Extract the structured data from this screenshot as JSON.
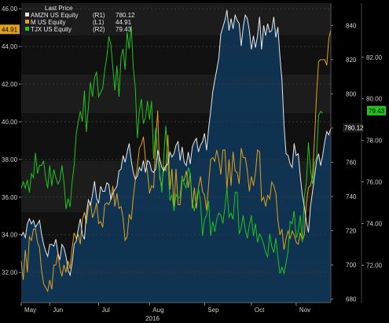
{
  "chart_data": {
    "type": "line",
    "legend": {
      "title": "Last Price",
      "placement": "top-left",
      "items": [
        {
          "key": "amzn",
          "name": "AMZN US Equity",
          "axis_label": "(R1)",
          "value": "780.12"
        },
        {
          "key": "m",
          "name": "M US Equity",
          "axis_label": "(L1)",
          "value": "44.91"
        },
        {
          "key": "tjx",
          "name": "TJX US Equity",
          "axis_label": "(R2)",
          "value": "79.43"
        }
      ]
    },
    "x_axis": {
      "months": [
        "May",
        "Jun",
        "Jul",
        "Aug",
        "Sep",
        "Oct",
        "Nov"
      ],
      "year": "2016"
    },
    "axes": {
      "L1": {
        "ticks": [
          "32.00",
          "34.00",
          "36.00",
          "38.00",
          "40.00",
          "42.00",
          "44.00",
          "46.00"
        ],
        "range": [
          30.4,
          46.3
        ]
      },
      "R1": {
        "ticks": [
          "680",
          "700",
          "720",
          "740",
          "760",
          "780",
          "800",
          "820",
          "840"
        ],
        "range": [
          678,
          853
        ]
      },
      "R2": {
        "ticks": [
          "72.00",
          "74.00",
          "76.00",
          "78.00",
          "80.00",
          "82.00"
        ],
        "range": [
          70.2,
          84.6
        ]
      }
    },
    "value_tags": {
      "m": "44.91",
      "amzn": "780.12",
      "tjx": "79.43"
    },
    "colors": {
      "amzn": "#e8e8e8",
      "m": "#e0a21a",
      "tjx": "#22c41e",
      "area": "#0f3554",
      "background": "#000000"
    },
    "series": [
      {
        "key": "amzn",
        "name": "AMZN US Equity",
        "axis": "R1",
        "values": [
          717,
          719,
          716,
          724,
          727,
          724,
          726,
          722,
          724,
          726,
          718,
          712,
          708,
          705,
          712,
          712,
          711,
          715,
          707,
          703,
          712,
          710,
          705,
          697,
          694,
          701,
          712,
          714,
          721,
          727,
          718,
          715,
          730,
          738,
          735,
          741,
          749,
          739,
          736,
          746,
          743,
          743,
          748,
          747,
          738,
          742,
          744,
          746,
          755,
          756,
          764,
          760,
          766,
          771,
          761,
          754,
          750,
          752,
          757,
          755,
          761,
          754,
          761,
          760,
          755,
          754,
          756,
          767,
          762,
          757,
          755,
          758,
          759,
          766,
          763,
          765,
          770,
          772,
          761,
          769,
          760,
          758,
          766,
          759,
          769,
          772,
          774,
          766,
          770,
          772,
          777,
          767,
          780,
          790,
          801,
          808,
          814,
          821,
          835,
          839,
          843,
          849,
          837,
          844,
          838,
          846,
          843,
          841,
          828,
          839,
          846,
          844,
          837,
          826,
          834,
          827,
          834,
          845,
          826,
          840,
          834,
          841,
          836,
          837,
          845,
          833,
          839,
          822,
          808,
          782,
          765,
          764,
          759,
          757,
          771,
          764,
          765,
          752,
          741,
          734,
          725,
          719,
          734,
          743,
          752,
          761,
          765,
          758,
          764,
          772,
          778,
          776,
          780
        ]
      },
      {
        "key": "m",
        "name": "M US Equity",
        "axis": "L1",
        "values": [
          32.6,
          31.6,
          33.2,
          32.0,
          33.9,
          33.7,
          34.3,
          34.3,
          33.6,
          33.3,
          32.1,
          31.4,
          31.2,
          31.0,
          31.6,
          31.1,
          32.4,
          32.4,
          33.0,
          32.2,
          31.8,
          32.4,
          32.0,
          32.6,
          32.2,
          33.3,
          34.1,
          33.8,
          34.0,
          33.5,
          34.8,
          35.2,
          34.6,
          35.5,
          35.7,
          34.9,
          35.2,
          35.7,
          34.6,
          34.7,
          34.4,
          35.6,
          35.7,
          35.6,
          35.9,
          36.6,
          35.5,
          36.2,
          35.4,
          35.5,
          34.9,
          33.7,
          33.9,
          35.1,
          34.8,
          36.0,
          36.9,
          37.6,
          38.6,
          38.8,
          39.2,
          38.0,
          37.3,
          36.2,
          36.6,
          36.5,
          38.9,
          40.6,
          37.0,
          36.6,
          37.6,
          37.4,
          39.3,
          36.4,
          37.5,
          35.5,
          37.5,
          35.6,
          35.6,
          36.9,
          36.9,
          37.4,
          36.5,
          37.3,
          35.4,
          36.5,
          35.4,
          36.5,
          37.1,
          36.3,
          36.1,
          35.3,
          36.7,
          38.0,
          38.1,
          37.9,
          38.5,
          38.0,
          37.2,
          38.5,
          38.5,
          36.4,
          38.0,
          36.6,
          38.4,
          37.4,
          37.3,
          36.7,
          38.6,
          38.1,
          38.1,
          37.4,
          36.3,
          37.1,
          36.6,
          37.3,
          38.5,
          38.4,
          35.8,
          36.0,
          35.5,
          36.1,
          35.9,
          36.8,
          36.6,
          36.2,
          34.8,
          34.0,
          34.3,
          33.2,
          33.8,
          34.2,
          33.8,
          34.2,
          34.0,
          33.6,
          33.5,
          34.1,
          33.7,
          34.0,
          35.7,
          36.5,
          36.6,
          37.1,
          39.2,
          41.5,
          43.2,
          43.3,
          43.3,
          43.3,
          43.0,
          44.4,
          44.9
        ]
      },
      {
        "key": "tjx",
        "name": "TJX US Equity",
        "axis": "R2",
        "values": [
          75.7,
          76.0,
          75.7,
          76.1,
          75.5,
          76.4,
          76.2,
          77.4,
          76.4,
          76.8,
          76.8,
          77.0,
          76.2,
          75.7,
          76.8,
          75.8,
          76.6,
          76.2,
          75.9,
          76.1,
          76.8,
          76.0,
          74.7,
          75.2,
          74.8,
          76.0,
          76.8,
          78.3,
          78.9,
          79.4,
          78.9,
          80.4,
          78.4,
          79.6,
          80.8,
          80.1,
          81.0,
          81.3,
          80.1,
          80.3,
          80.5,
          81.4,
          82.0,
          83.0,
          82.6,
          81.5,
          80.4,
          81.6,
          80.1,
          82.0,
          82.4,
          81.4,
          83.2,
          82.4,
          83.5,
          81.5,
          80.5,
          78.1,
          79.4,
          80.0,
          78.8,
          79.1,
          79.9,
          79.0,
          79.9,
          77.1,
          78.6,
          77.2,
          76.4,
          75.5,
          77.2,
          78.7,
          77.0,
          75.1,
          75.4,
          74.6,
          75.4,
          75.2,
          75.3,
          76.3,
          75.9,
          75.7,
          76.7,
          76.4,
          75.0,
          74.6,
          75.2,
          75.7,
          75.1,
          73.4,
          74.2,
          74.4,
          75.1,
          73.4,
          74.1,
          73.6,
          74.2,
          74.5,
          74.4,
          74.0,
          74.8,
          75.7,
          74.3,
          74.5,
          74.2,
          75.5,
          75.5,
          73.5,
          73.8,
          74.4,
          73.7,
          73.3,
          73.9,
          74.4,
          73.4,
          74.0,
          73.1,
          73.5,
          73.3,
          73.0,
          72.6,
          72.4,
          73.5,
          72.9,
          72.6,
          73.3,
          72.4,
          71.6,
          71.9,
          71.6,
          72.1,
          72.7,
          74.1,
          74.0,
          74.6,
          73.3,
          73.6,
          74.4,
          73.1,
          75.3,
          76.0,
          77.9,
          76.6,
          75.9,
          76.9,
          77.2,
          79.2,
          79.4,
          79.3
        ]
      }
    ]
  }
}
